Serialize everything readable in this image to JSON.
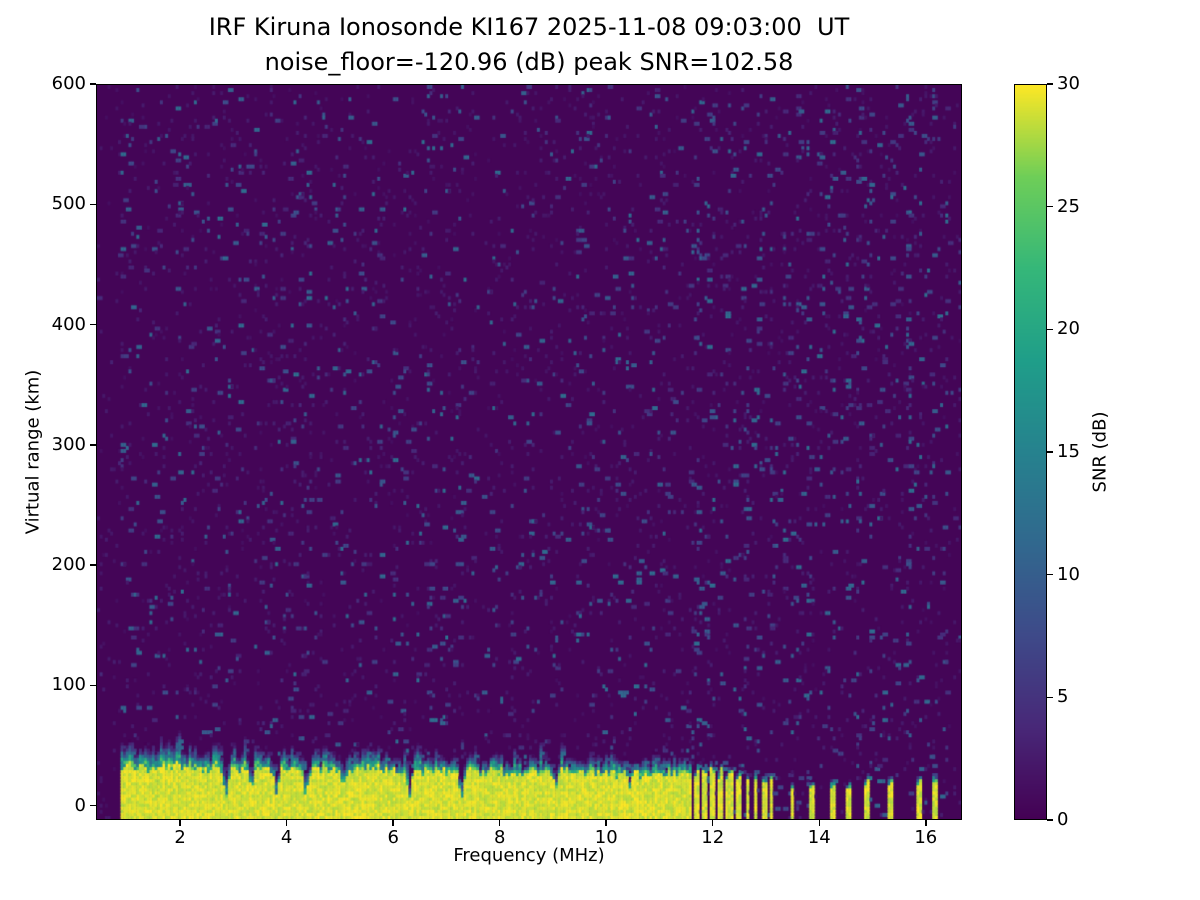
{
  "title": "IRF Kiruna Ionosonde KI167 2025-11-08 09:03:00  UT",
  "subtitle": "noise_floor=-120.96 (dB) peak SNR=102.58",
  "chart_data": {
    "type": "heatmap",
    "title": "IRF Kiruna Ionosonde KI167 2025-11-08 09:03:00  UT",
    "subtitle": "noise_floor=-120.96 (dB) peak SNR=102.58",
    "xlabel": "Frequency (MHz)",
    "ylabel": "Virtual range (km)",
    "xlim": [
      0.42,
      16.68
    ],
    "ylim": [
      -12,
      600
    ],
    "x_ticks": [
      2,
      4,
      6,
      8,
      10,
      12,
      14,
      16
    ],
    "y_ticks": [
      0,
      100,
      200,
      300,
      400,
      500,
      600
    ],
    "grid": false,
    "colorbar": {
      "label": "SNR (dB)",
      "min": 0,
      "max": 30,
      "ticks": [
        0,
        5,
        10,
        15,
        20,
        25,
        30
      ],
      "colormap": "viridis"
    },
    "colors": {
      "background_low_snr": "#440154",
      "peak_snr": "#fde725",
      "figure_background": "#ffffff"
    },
    "data_freq_range": [
      0.88,
      16.45
    ],
    "features": {
      "description": "Dark purple (~0 dB SNR) background with sparse teal noise speckles; saturated yellow ground-clutter echo band from below 0 km up to ~25-55 km virtual range between 0.9 and 11.6 MHz, topped by a ragged teal transition fringe and cut by dark vertical notches; above 11.6 MHz the band breaks into narrow intermittent yellow stripes with faint full-height vertical noise columns.",
      "background_snr_db": 0.5,
      "speckle_snr_range_db": [
        3,
        12
      ],
      "band_end_freq_mhz": 11.6,
      "sat_top_base_km": 31,
      "sat_top_slope_km_per_mhz": 0.55,
      "notches": [
        {
          "f": 2.85,
          "depth": 0.85
        },
        {
          "f": 3.32,
          "depth": 0.5
        },
        {
          "f": 3.8,
          "depth": 0.8
        },
        {
          "f": 4.35,
          "depth": 0.85
        },
        {
          "f": 5.05,
          "depth": 0.45
        },
        {
          "f": 6.3,
          "depth": 0.85
        },
        {
          "f": 7.28,
          "depth": 0.8
        },
        {
          "f": 9.05,
          "depth": 0.45
        },
        {
          "f": 10.45,
          "depth": 0.4
        }
      ],
      "stripes": [
        {
          "f": 11.68,
          "top": 30,
          "w": 0.05
        },
        {
          "f": 11.84,
          "top": 28,
          "w": 0.04
        },
        {
          "f": 12.0,
          "top": 27,
          "w": 0.05
        },
        {
          "f": 12.16,
          "top": 26,
          "w": 0.04
        },
        {
          "f": 12.32,
          "top": 25,
          "w": 0.05
        },
        {
          "f": 12.5,
          "top": 24,
          "w": 0.04
        },
        {
          "f": 12.66,
          "top": 23,
          "w": 0.04
        },
        {
          "f": 12.82,
          "top": 22,
          "w": 0.04
        },
        {
          "f": 12.98,
          "top": 21,
          "w": 0.05
        },
        {
          "f": 13.12,
          "top": 19,
          "w": 0.03
        },
        {
          "f": 13.5,
          "top": 17,
          "w": 0.04
        },
        {
          "f": 13.88,
          "top": 15,
          "w": 0.04
        },
        {
          "f": 14.28,
          "top": 19,
          "w": 0.04
        },
        {
          "f": 14.56,
          "top": 13,
          "w": 0.03
        },
        {
          "f": 14.92,
          "top": 17,
          "w": 0.04
        },
        {
          "f": 15.36,
          "top": 15,
          "w": 0.04
        },
        {
          "f": 15.9,
          "top": 19,
          "w": 0.05
        },
        {
          "f": 16.18,
          "top": 21,
          "w": 0.05
        }
      ],
      "noise_column_start_mhz": 11.7,
      "noise_column_spacing_mhz": 0.235
    }
  }
}
